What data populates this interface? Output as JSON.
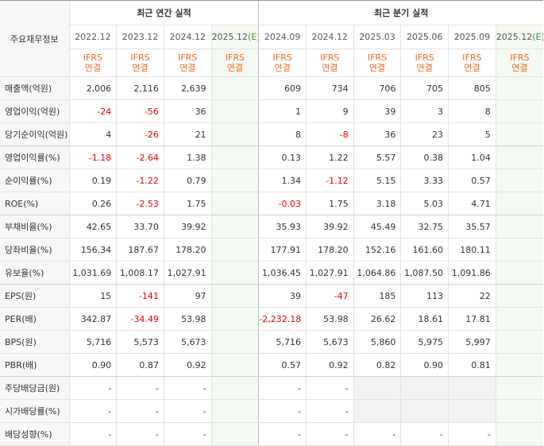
{
  "header": {
    "row_label": "주요재무정보",
    "annual_title": "최근 연간 실적",
    "quarter_title": "최근 분기 실적",
    "accounting": "IFRS\n연결",
    "accounting_line1": "IFRS",
    "accounting_line2": "연결",
    "annual_periods": [
      "2022.12",
      "2023.12",
      "2024.12",
      "2025.12"
    ],
    "annual_estimate_suffix": "(E)",
    "quarter_periods": [
      "2024.09",
      "2024.12",
      "2025.03",
      "2025.06",
      "2025.09",
      "2025.12"
    ],
    "quarter_estimate_suffix": "(E)"
  },
  "colors": {
    "negative": "#e00000",
    "accounting": "#e86a1f",
    "estimate_bg": "#f4faf1",
    "estimate_paren": "#3a9a3a"
  },
  "rows": [
    {
      "label": "매출액(억원)",
      "annual": [
        "2,006",
        "2,116",
        "2,639",
        ""
      ],
      "quarter": [
        "609",
        "734",
        "706",
        "705",
        "805",
        ""
      ]
    },
    {
      "label": "영업이익(억원)",
      "annual": [
        "-24",
        "-56",
        "36",
        ""
      ],
      "quarter": [
        "1",
        "9",
        "39",
        "3",
        "8",
        ""
      ]
    },
    {
      "label": "당기순이익(억원)",
      "annual": [
        "4",
        "-26",
        "21",
        ""
      ],
      "quarter": [
        "8",
        "-8",
        "36",
        "23",
        "5",
        ""
      ]
    },
    {
      "label": "영업이익률(%)",
      "annual": [
        "-1.18",
        "-2.64",
        "1.38",
        ""
      ],
      "quarter": [
        "0.13",
        "1.22",
        "5.57",
        "0.38",
        "1.04",
        ""
      ]
    },
    {
      "label": "순이익률(%)",
      "annual": [
        "0.19",
        "-1.22",
        "0.79",
        ""
      ],
      "quarter": [
        "1.34",
        "-1.12",
        "5.15",
        "3.33",
        "0.57",
        ""
      ]
    },
    {
      "label": "ROE(%)",
      "annual": [
        "0.26",
        "-2.53",
        "1.75",
        ""
      ],
      "quarter": [
        "-0.03",
        "1.75",
        "3.18",
        "5.03",
        "4.71",
        ""
      ]
    },
    {
      "label": "부채비율(%)",
      "annual": [
        "42.65",
        "33.70",
        "39.92",
        ""
      ],
      "quarter": [
        "35.93",
        "39.92",
        "45.49",
        "32.75",
        "35.57",
        ""
      ]
    },
    {
      "label": "당좌비율(%)",
      "annual": [
        "156.34",
        "187.67",
        "178.20",
        ""
      ],
      "quarter": [
        "177.91",
        "178.20",
        "152.16",
        "161.60",
        "180.11",
        ""
      ]
    },
    {
      "label": "유보율(%)",
      "annual": [
        "1,031.69",
        "1,008.17",
        "1,027.91",
        ""
      ],
      "quarter": [
        "1,036.45",
        "1,027.91",
        "1,064.86",
        "1,087.50",
        "1,091.86",
        ""
      ]
    },
    {
      "label": "EPS(원)",
      "annual": [
        "15",
        "-141",
        "97",
        ""
      ],
      "quarter": [
        "39",
        "-47",
        "185",
        "113",
        "22",
        ""
      ]
    },
    {
      "label": "PER(배)",
      "annual": [
        "342.87",
        "-34.49",
        "53.98",
        ""
      ],
      "quarter": [
        "-2,232.18",
        "53.98",
        "26.62",
        "18.61",
        "17.81",
        ""
      ]
    },
    {
      "label": "BPS(원)",
      "annual": [
        "5,716",
        "5,573",
        "5,673",
        ""
      ],
      "quarter": [
        "5,716",
        "5,673",
        "5,860",
        "5,975",
        "5,997",
        ""
      ]
    },
    {
      "label": "PBR(배)",
      "annual": [
        "0.90",
        "0.87",
        "0.92",
        ""
      ],
      "quarter": [
        "0.57",
        "0.92",
        "0.82",
        "0.90",
        "0.81",
        ""
      ]
    },
    {
      "label": "주당배당금(원)",
      "annual": [
        "-",
        "-",
        "-",
        ""
      ],
      "quarter": [
        "-",
        "-",
        "",
        "",
        "",
        ""
      ]
    },
    {
      "label": "시가배당률(%)",
      "annual": [
        "-",
        "-",
        "-",
        ""
      ],
      "quarter": [
        "-",
        "-",
        "",
        "",
        "",
        ""
      ]
    },
    {
      "label": "배당성향(%)",
      "annual": [
        "-",
        "-",
        "-",
        ""
      ],
      "quarter": [
        "-",
        "-",
        "-",
        "-",
        "-",
        ""
      ]
    }
  ]
}
